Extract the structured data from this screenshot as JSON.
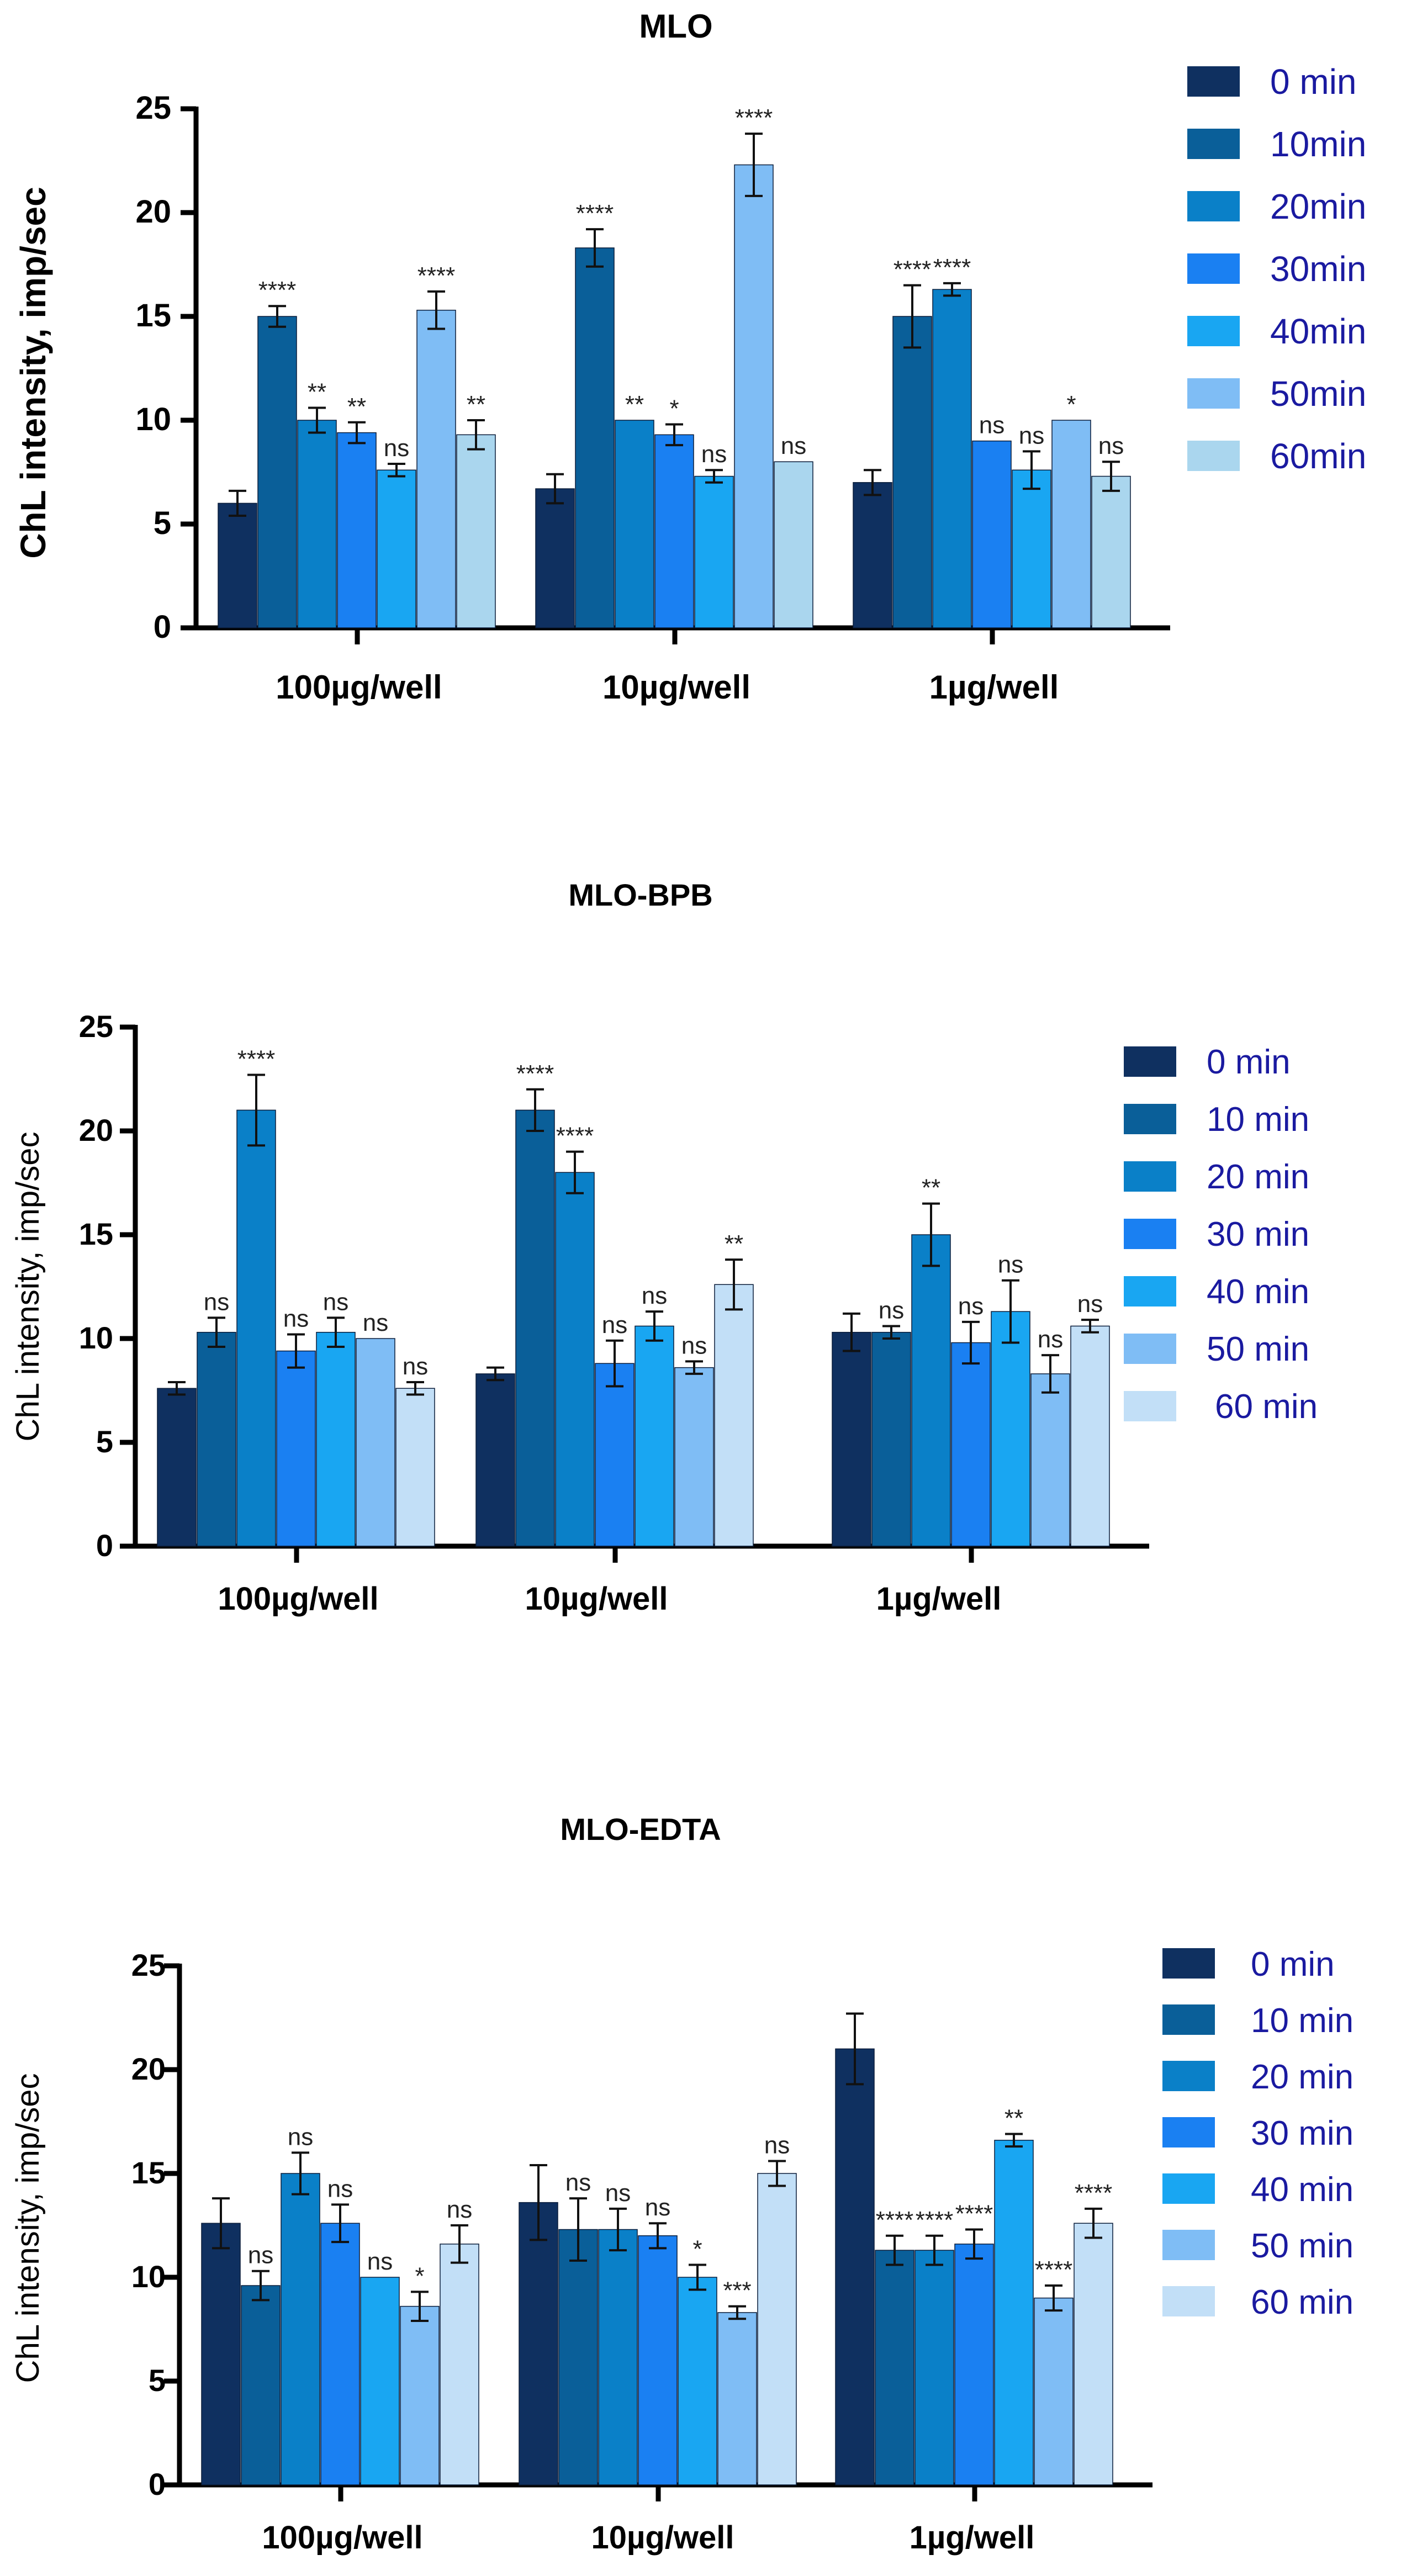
{
  "chart_data": [
    {
      "type": "bar",
      "title": "MLO",
      "ylabel": "ChL intensity, imp/sec",
      "xlabel": "",
      "ylim": [
        0,
        25
      ],
      "yticks": [
        "0",
        "5",
        "10",
        "15",
        "20",
        "25"
      ],
      "categories": [
        "100µg/well",
        "10µg/well",
        "1µg/well"
      ],
      "legend_position": "right",
      "series": [
        {
          "name": "0 min",
          "color": "#0f3060",
          "values": [
            6.0,
            6.7,
            7.0
          ],
          "errors": [
            0.6,
            0.7,
            0.6
          ],
          "annotations": [
            "",
            "",
            ""
          ]
        },
        {
          "name": "10min",
          "color": "#0a5f99",
          "values": [
            15.0,
            18.3,
            15.0
          ],
          "errors": [
            0.5,
            0.9,
            1.5
          ],
          "annotations": [
            "****",
            "****",
            "****"
          ]
        },
        {
          "name": "20min",
          "color": "#0a80c8",
          "values": [
            10.0,
            10.0,
            16.3
          ],
          "errors": [
            0.6,
            0.0,
            0.3
          ],
          "annotations": [
            "**",
            "**",
            "****"
          ]
        },
        {
          "name": "30min",
          "color": "#1a80f2",
          "values": [
            9.4,
            9.3,
            9.0
          ],
          "errors": [
            0.5,
            0.5,
            0.0
          ],
          "annotations": [
            "**",
            "*",
            "ns"
          ]
        },
        {
          "name": "40min",
          "color": "#19a6f2",
          "values": [
            7.6,
            7.3,
            7.6
          ],
          "errors": [
            0.3,
            0.3,
            0.9
          ],
          "annotations": [
            "ns",
            "ns",
            "ns"
          ]
        },
        {
          "name": "50min",
          "color": "#7fbdf5",
          "values": [
            15.3,
            22.3,
            10.0
          ],
          "errors": [
            0.9,
            1.5,
            0.0
          ],
          "annotations": [
            "****",
            "****",
            "*"
          ]
        },
        {
          "name": "60min",
          "color": "#aad6ee",
          "values": [
            9.3,
            8.0,
            7.3
          ],
          "errors": [
            0.7,
            0.0,
            0.7
          ],
          "annotations": [
            "**",
            "ns",
            "ns"
          ]
        }
      ]
    },
    {
      "type": "bar",
      "title": "MLO-BPB",
      "ylabel": "ChL intensity, imp/sec",
      "xlabel": "",
      "ylim": [
        0,
        25
      ],
      "yticks": [
        "0",
        "5",
        "10",
        "15",
        "20",
        "25"
      ],
      "categories": [
        "100µg/well",
        "10µg/well",
        "1µg/well"
      ],
      "legend_position": "right",
      "series": [
        {
          "name": "0 min",
          "color": "#0f3060",
          "values": [
            7.6,
            8.3,
            10.3
          ],
          "errors": [
            0.3,
            0.3,
            0.9
          ],
          "annotations": [
            "",
            "",
            ""
          ]
        },
        {
          "name": "10 min",
          "color": "#0a5f99",
          "values": [
            10.3,
            21.0,
            10.3
          ],
          "errors": [
            0.7,
            1.0,
            0.3
          ],
          "annotations": [
            "ns",
            "****",
            "ns"
          ]
        },
        {
          "name": "20 min",
          "color": "#0a80c8",
          "values": [
            21.0,
            18.0,
            15.0
          ],
          "errors": [
            1.7,
            1.0,
            1.5
          ],
          "annotations": [
            "****",
            "****",
            "**"
          ]
        },
        {
          "name": "30 min",
          "color": "#1a80f2",
          "values": [
            9.4,
            8.8,
            9.8
          ],
          "errors": [
            0.8,
            1.1,
            1.0
          ],
          "annotations": [
            "ns",
            "ns",
            "ns"
          ]
        },
        {
          "name": "40 min",
          "color": "#19a6f2",
          "values": [
            10.3,
            10.6,
            11.3
          ],
          "errors": [
            0.7,
            0.7,
            1.5
          ],
          "annotations": [
            "ns",
            "ns",
            "ns"
          ]
        },
        {
          "name": "50 min",
          "color": "#7fbdf5",
          "values": [
            10.0,
            8.6,
            8.3
          ],
          "errors": [
            0.0,
            0.3,
            0.9
          ],
          "annotations": [
            "ns",
            "ns",
            "ns"
          ]
        },
        {
          "name": "60 min",
          "color": "#c2dff7",
          "values": [
            7.6,
            12.6,
            10.6
          ],
          "errors": [
            0.3,
            1.2,
            0.3
          ],
          "annotations": [
            "ns",
            "**",
            "ns"
          ]
        }
      ]
    },
    {
      "type": "bar",
      "title": "MLO-EDTA",
      "ylabel": "ChL intensity, imp/sec",
      "xlabel": "",
      "ylim": [
        0,
        25
      ],
      "yticks": [
        "0",
        "5",
        "10",
        "15",
        "20",
        "25"
      ],
      "categories": [
        "100µg/well",
        "10µg/well",
        "1µg/well"
      ],
      "legend_position": "right",
      "series": [
        {
          "name": "0 min",
          "color": "#0f3060",
          "values": [
            12.6,
            13.6,
            21.0
          ],
          "errors": [
            1.2,
            1.8,
            1.7
          ],
          "annotations": [
            "",
            "",
            ""
          ]
        },
        {
          "name": "10 min",
          "color": "#0a5f99",
          "values": [
            9.6,
            12.3,
            11.3
          ],
          "errors": [
            0.7,
            1.5,
            0.7
          ],
          "annotations": [
            "ns",
            "ns",
            "****"
          ]
        },
        {
          "name": "20 min",
          "color": "#0a80c8",
          "values": [
            15.0,
            12.3,
            11.3
          ],
          "errors": [
            1.0,
            1.0,
            0.7
          ],
          "annotations": [
            "ns",
            "ns",
            "****"
          ]
        },
        {
          "name": "30 min",
          "color": "#1a80f2",
          "values": [
            12.6,
            12.0,
            11.6
          ],
          "errors": [
            0.9,
            0.6,
            0.7
          ],
          "annotations": [
            "ns",
            "ns",
            "****"
          ]
        },
        {
          "name": "40 min",
          "color": "#19a6f2",
          "values": [
            10.0,
            10.0,
            16.6
          ],
          "errors": [
            0.0,
            0.6,
            0.3
          ],
          "annotations": [
            "ns",
            "*",
            "**"
          ]
        },
        {
          "name": "50 min",
          "color": "#7fbdf5",
          "values": [
            8.6,
            8.3,
            9.0
          ],
          "errors": [
            0.7,
            0.3,
            0.6
          ],
          "annotations": [
            "*",
            "***",
            "****"
          ]
        },
        {
          "name": "60 min",
          "color": "#c2dff7",
          "values": [
            11.6,
            15.0,
            12.6
          ],
          "errors": [
            0.9,
            0.6,
            0.7
          ],
          "annotations": [
            "ns",
            "ns",
            "****"
          ]
        }
      ]
    }
  ]
}
